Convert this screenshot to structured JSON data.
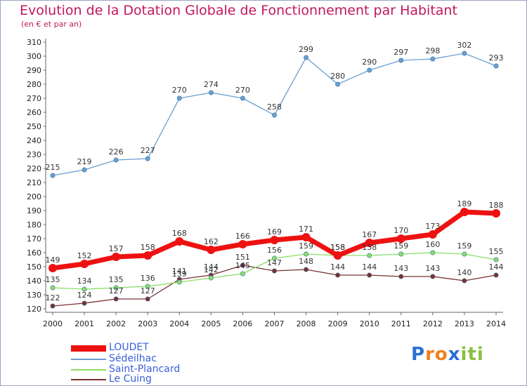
{
  "chart_data": {
    "type": "line",
    "title": "Evolution de la Dotation Globale de Fonctionnement par Habitant",
    "subtitle": "(en € et par an)",
    "x": [
      "2000",
      "2001",
      "2002",
      "2003",
      "2004",
      "2005",
      "2006",
      "2007",
      "2008",
      "2009",
      "2010",
      "2011",
      "2012",
      "2013",
      "2014"
    ],
    "ylim": [
      120,
      310
    ],
    "yticks": [
      120,
      130,
      140,
      150,
      160,
      170,
      180,
      190,
      200,
      210,
      220,
      230,
      240,
      250,
      260,
      270,
      280,
      290,
      300,
      310
    ],
    "grid": false,
    "legend_position": "bottom-left",
    "series": [
      {
        "name": "LOUDET",
        "color": "#ee1111",
        "values": [
          149,
          152,
          157,
          158,
          168,
          162,
          166,
          169,
          171,
          158,
          167,
          170,
          173,
          189,
          188
        ]
      },
      {
        "name": "Sédeilhac",
        "color": "#6a9fd0",
        "values": [
          215,
          219,
          226,
          227,
          270,
          274,
          270,
          258,
          299,
          280,
          290,
          297,
          298,
          302,
          293
        ]
      },
      {
        "name": "Saint-Plancard",
        "color": "#88dd66",
        "values": [
          135,
          134,
          135,
          136,
          139,
          142,
          145,
          156,
          159,
          158,
          158,
          159,
          160,
          159,
          155
        ]
      },
      {
        "name": "Le Cuing",
        "color": "#7a3030",
        "values": [
          122,
          124,
          127,
          127,
          141,
          144,
          151,
          147,
          148,
          144,
          144,
          143,
          143,
          140,
          144
        ]
      }
    ]
  },
  "logo": {
    "letters": [
      "P",
      "r",
      "o",
      "x",
      "i",
      "t",
      "i"
    ],
    "colors": [
      "#2a6fd6",
      "#f08020",
      "#f08020",
      "#2a6fd6",
      "#88c040",
      "#88c040",
      "#88c040"
    ]
  }
}
